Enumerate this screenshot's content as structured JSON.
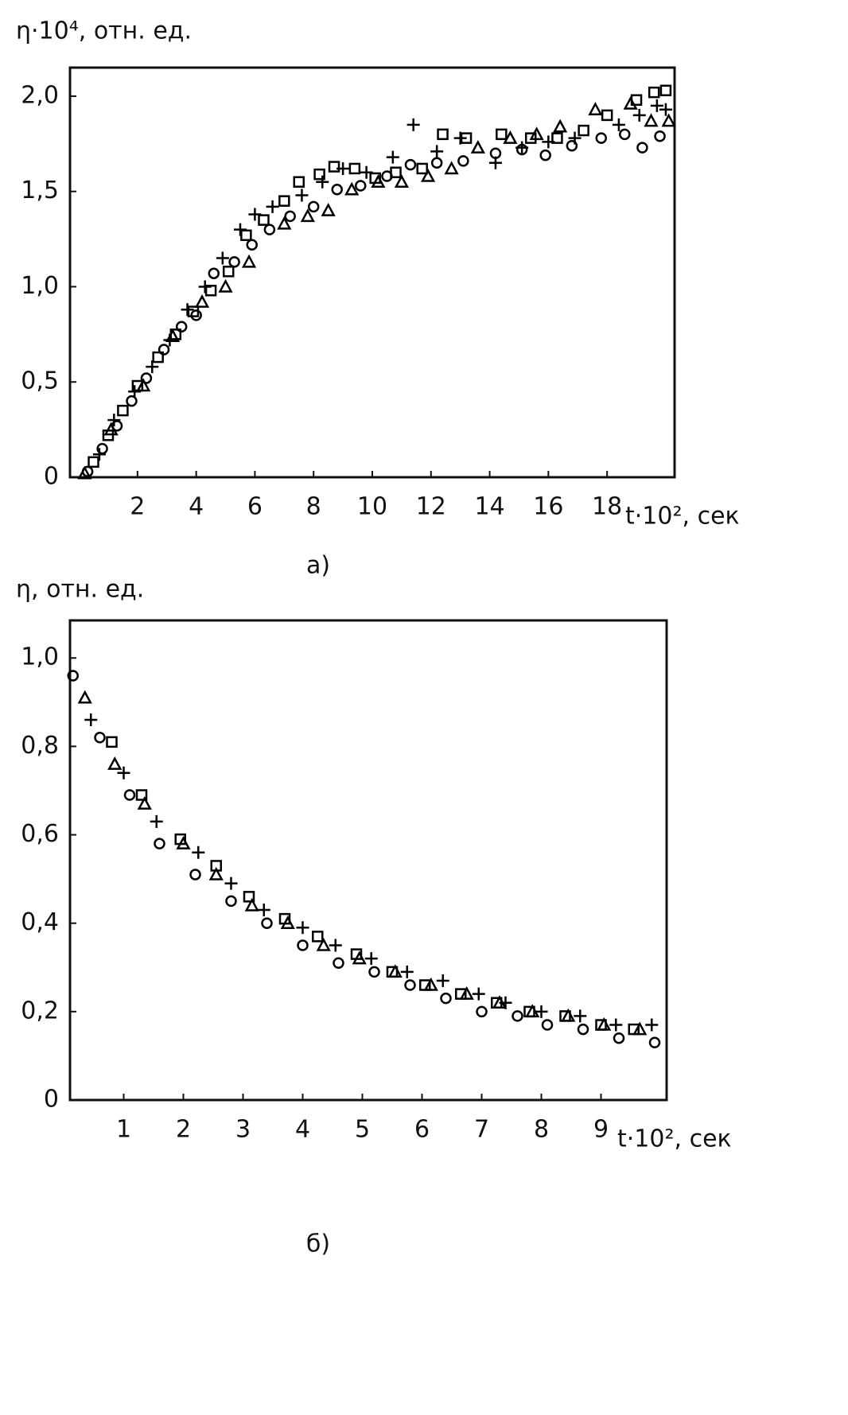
{
  "chart_data": [
    {
      "type": "scatter",
      "y_label": "η·10⁴, отн. ед.",
      "x_label": "t·10², сек",
      "caption": "а)",
      "xlim": [
        -0.3,
        20.3
      ],
      "ylim": [
        0,
        2.15
      ],
      "xticks": [
        2,
        4,
        6,
        8,
        10,
        12,
        14,
        16,
        18
      ],
      "yticks": [
        0,
        {
          "value": 0.5,
          "label": "0,5"
        },
        {
          "value": 1.0,
          "label": "1,0"
        },
        {
          "value": 1.5,
          "label": "1,5"
        },
        {
          "value": 2.0,
          "label": "2,0"
        }
      ],
      "series": [
        {
          "marker": "circle",
          "color": "#000000",
          "x": [
            0.3,
            0.8,
            1.3,
            1.8,
            2.3,
            2.9,
            3.5,
            4.0,
            4.6,
            5.3,
            5.9,
            6.5,
            7.2,
            8.0,
            8.8,
            9.6,
            10.5,
            11.3,
            12.2,
            13.1,
            14.2,
            15.1,
            15.9,
            16.8,
            17.8,
            18.6,
            19.2,
            19.8
          ],
          "values": [
            0.03,
            0.15,
            0.27,
            0.4,
            0.52,
            0.67,
            0.79,
            0.85,
            1.07,
            1.13,
            1.22,
            1.3,
            1.37,
            1.42,
            1.51,
            1.53,
            1.58,
            1.64,
            1.65,
            1.66,
            1.7,
            1.72,
            1.69,
            1.74,
            1.78,
            1.8,
            1.73,
            1.79
          ]
        },
        {
          "marker": "square",
          "color": "#000000",
          "x": [
            0.5,
            1.0,
            1.5,
            2.0,
            2.7,
            3.3,
            3.9,
            4.5,
            5.1,
            5.7,
            6.3,
            7.0,
            7.5,
            8.2,
            8.7,
            9.4,
            10.1,
            10.8,
            11.7,
            12.4,
            13.2,
            14.4,
            15.4,
            16.3,
            17.2,
            18.0,
            19.0,
            19.6,
            20.0
          ],
          "values": [
            0.08,
            0.22,
            0.35,
            0.48,
            0.63,
            0.75,
            0.87,
            0.98,
            1.08,
            1.27,
            1.35,
            1.45,
            1.55,
            1.59,
            1.63,
            1.62,
            1.57,
            1.6,
            1.62,
            1.8,
            1.78,
            1.8,
            1.78,
            1.78,
            1.82,
            1.9,
            1.98,
            2.02,
            2.03
          ]
        },
        {
          "marker": "plus",
          "color": "#000000",
          "x": [
            0.7,
            1.2,
            1.9,
            2.5,
            3.1,
            3.7,
            4.3,
            4.9,
            5.5,
            6.0,
            6.6,
            7.6,
            8.3,
            9.0,
            9.8,
            10.7,
            11.4,
            12.2,
            13.0,
            14.2,
            15.1,
            16.0,
            16.9,
            18.4,
            19.1,
            19.7,
            20.0
          ],
          "values": [
            0.12,
            0.3,
            0.45,
            0.58,
            0.72,
            0.88,
            1.0,
            1.15,
            1.3,
            1.38,
            1.42,
            1.48,
            1.55,
            1.62,
            1.6,
            1.68,
            1.85,
            1.71,
            1.78,
            1.65,
            1.73,
            1.76,
            1.78,
            1.85,
            1.9,
            1.95,
            1.93
          ]
        },
        {
          "marker": "triangle",
          "color": "#000000",
          "x": [
            0.2,
            1.1,
            2.2,
            3.2,
            4.2,
            5.0,
            5.8,
            7.0,
            7.8,
            8.5,
            9.3,
            10.2,
            11.0,
            11.9,
            12.7,
            13.6,
            14.7,
            15.6,
            16.4,
            17.6,
            18.8,
            19.5,
            20.1
          ],
          "values": [
            0.02,
            0.25,
            0.48,
            0.74,
            0.92,
            1.0,
            1.13,
            1.33,
            1.37,
            1.4,
            1.51,
            1.55,
            1.55,
            1.58,
            1.62,
            1.73,
            1.78,
            1.8,
            1.84,
            1.93,
            1.96,
            1.87,
            1.87
          ]
        }
      ]
    },
    {
      "type": "scatter",
      "y_label": "η, отн. ед.",
      "x_label": "t·10², сек",
      "caption": "б)",
      "xlim": [
        0.1,
        10.1
      ],
      "ylim": [
        0,
        1.085
      ],
      "xticks": [
        1,
        2,
        3,
        4,
        5,
        6,
        7,
        8,
        9
      ],
      "yticks": [
        0,
        {
          "value": 0.2,
          "label": "0,2"
        },
        {
          "value": 0.4,
          "label": "0,4"
        },
        {
          "value": 0.6,
          "label": "0,6"
        },
        {
          "value": 0.8,
          "label": "0,8"
        },
        {
          "value": 1.0,
          "label": "1,0"
        }
      ],
      "series": [
        {
          "marker": "circle",
          "color": "#000000",
          "x": [
            0.15,
            0.6,
            1.1,
            1.6,
            2.2,
            2.8,
            3.4,
            4.0,
            4.6,
            5.2,
            5.8,
            6.4,
            7.0,
            7.6,
            8.1,
            8.7,
            9.3,
            9.9
          ],
          "values": [
            0.96,
            0.82,
            0.69,
            0.58,
            0.51,
            0.45,
            0.4,
            0.35,
            0.31,
            0.29,
            0.26,
            0.23,
            0.2,
            0.19,
            0.17,
            0.16,
            0.14,
            0.13
          ]
        },
        {
          "marker": "triangle",
          "color": "#000000",
          "x": [
            0.35,
            0.85,
            1.35,
            2.0,
            2.55,
            3.15,
            3.75,
            4.35,
            4.95,
            5.55,
            6.15,
            6.75,
            7.3,
            7.85,
            8.45,
            9.05,
            9.65
          ],
          "values": [
            0.91,
            0.76,
            0.67,
            0.58,
            0.51,
            0.44,
            0.4,
            0.35,
            0.32,
            0.29,
            0.26,
            0.24,
            0.22,
            0.2,
            0.19,
            0.17,
            0.16
          ]
        },
        {
          "marker": "square",
          "color": "#000000",
          "x": [
            0.8,
            1.3,
            1.95,
            2.55,
            3.1,
            3.7,
            4.25,
            4.9,
            5.5,
            6.05,
            6.65,
            7.25,
            7.8,
            8.4,
            9.0,
            9.55
          ],
          "values": [
            0.81,
            0.69,
            0.59,
            0.53,
            0.46,
            0.41,
            0.37,
            0.33,
            0.29,
            0.26,
            0.24,
            0.22,
            0.2,
            0.19,
            0.17,
            0.16
          ]
        },
        {
          "marker": "plus",
          "color": "#000000",
          "x": [
            0.45,
            1.0,
            1.55,
            2.25,
            2.8,
            3.35,
            4.0,
            4.55,
            5.15,
            5.75,
            6.35,
            6.95,
            7.4,
            8.0,
            8.65,
            9.25,
            9.85
          ],
          "values": [
            0.86,
            0.74,
            0.63,
            0.56,
            0.49,
            0.43,
            0.39,
            0.35,
            0.32,
            0.29,
            0.27,
            0.24,
            0.22,
            0.2,
            0.19,
            0.17,
            0.17
          ]
        }
      ]
    }
  ]
}
